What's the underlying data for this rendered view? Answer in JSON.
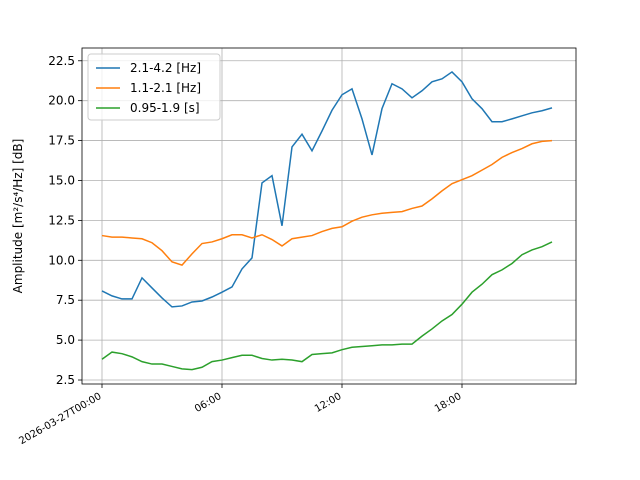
{
  "chart_data": {
    "type": "line",
    "y_label": "Amplitude [m²/s⁴/Hz] [dB]",
    "x": [
      0,
      0.5,
      1,
      1.5,
      2,
      2.5,
      3,
      3.5,
      4,
      4.5,
      5,
      5.5,
      6,
      6.5,
      7,
      7.5,
      8,
      8.5,
      9,
      9.5,
      10,
      10.5,
      11,
      11.5,
      12,
      12.5,
      13,
      13.5,
      14,
      14.5,
      15,
      15.5,
      16,
      16.5,
      17,
      17.5,
      18,
      18.5,
      19,
      19.5,
      20,
      20.5,
      21,
      21.5,
      22,
      22.5
    ],
    "series": [
      {
        "name": "2.1-4.2 [Hz]",
        "color": "#1f77b4",
        "values": [
          8.08,
          7.77,
          7.58,
          7.58,
          8.9,
          8.27,
          7.64,
          7.08,
          7.14,
          7.39,
          7.45,
          7.7,
          8.0,
          8.33,
          9.46,
          10.15,
          14.85,
          15.3,
          12.16,
          17.1,
          17.9,
          16.86,
          18.1,
          19.4,
          20.37,
          20.74,
          18.86,
          16.6,
          19.5,
          21.06,
          20.74,
          20.18,
          20.62,
          21.18,
          21.37,
          21.8,
          21.18,
          20.12,
          19.5,
          18.68,
          18.68,
          18.86,
          19.05,
          19.24,
          19.37,
          19.55
        ]
      },
      {
        "name": "1.1-2.1 [Hz]",
        "color": "#ff7f0e",
        "values": [
          11.55,
          11.45,
          11.45,
          11.4,
          11.35,
          11.1,
          10.6,
          9.9,
          9.7,
          10.4,
          11.05,
          11.15,
          11.35,
          11.6,
          11.6,
          11.4,
          11.6,
          11.3,
          10.9,
          11.35,
          11.45,
          11.55,
          11.8,
          12.0,
          12.1,
          12.45,
          12.7,
          12.85,
          12.95,
          13.0,
          13.05,
          13.25,
          13.4,
          13.85,
          14.35,
          14.8,
          15.05,
          15.3,
          15.65,
          16.0,
          16.45,
          16.75,
          17.0,
          17.3,
          17.45,
          17.5
        ]
      },
      {
        "name": "0.95-1.9 [s]",
        "color": "#2ca02c",
        "values": [
          3.8,
          4.25,
          4.15,
          3.95,
          3.65,
          3.5,
          3.5,
          3.35,
          3.2,
          3.15,
          3.3,
          3.65,
          3.75,
          3.9,
          4.05,
          4.05,
          3.85,
          3.75,
          3.8,
          3.75,
          3.65,
          4.1,
          4.15,
          4.2,
          4.4,
          4.55,
          4.6,
          4.65,
          4.7,
          4.7,
          4.75,
          4.75,
          5.25,
          5.7,
          6.2,
          6.6,
          7.25,
          8.0,
          8.5,
          9.1,
          9.4,
          9.8,
          10.35,
          10.65,
          10.85,
          11.15
        ]
      }
    ],
    "xlim": [
      -1,
      23.7
    ],
    "xticks": [
      {
        "value": 0,
        "label": "2026-03-27T00:00"
      },
      {
        "value": 6,
        "label": "06:00"
      },
      {
        "value": 12,
        "label": "12:00"
      },
      {
        "value": 18,
        "label": "18:00"
      }
    ],
    "ylim": [
      2.25,
      23.3
    ],
    "yticks": [
      2.5,
      {
        "value": 5,
        "label": "5.0"
      },
      7.5,
      {
        "value": 10,
        "label": "10.0"
      },
      12.5,
      {
        "value": 15,
        "label": "15.0"
      },
      17.5,
      {
        "value": 20,
        "label": "20.0"
      },
      22.5
    ],
    "grid": true,
    "legend": "upper-left"
  }
}
